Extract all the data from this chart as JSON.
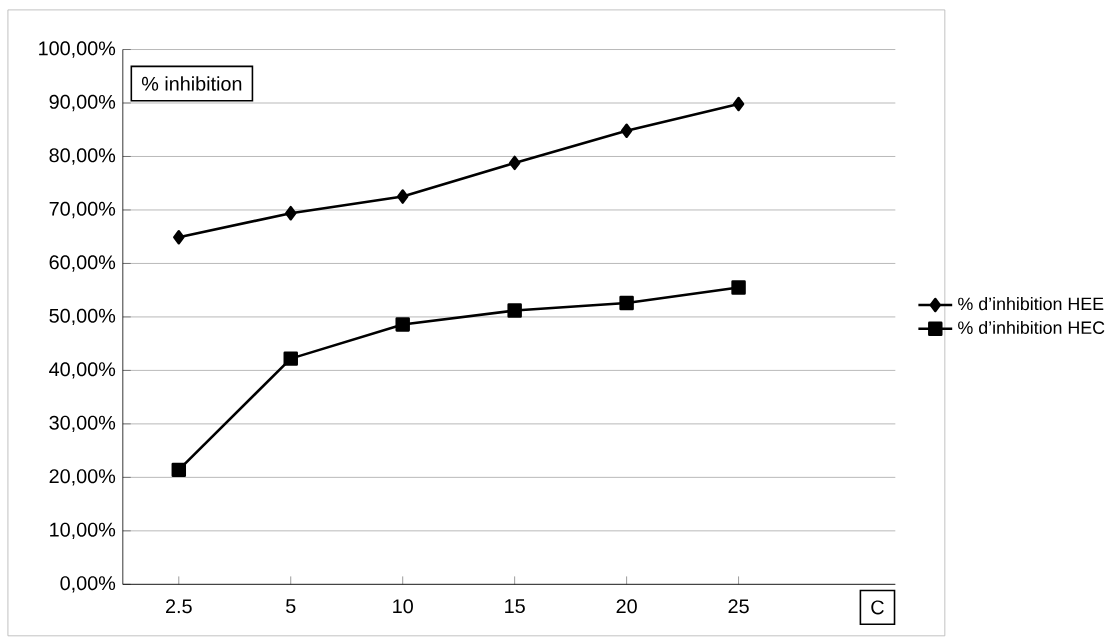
{
  "chart_data": {
    "type": "line",
    "ylabel": "% inhibition",
    "xlabel": "C",
    "categories": [
      "2.5",
      "5",
      "10",
      "15",
      "20",
      "25"
    ],
    "series": [
      {
        "name": "% d’inhibition HEE",
        "color": "#000000",
        "marker": "diamond",
        "values": [
          64.9,
          69.4,
          72.5,
          78.8,
          84.8,
          89.8
        ]
      },
      {
        "name": "% d’inhibition HEC",
        "color": "#000000",
        "marker": "square",
        "values": [
          21.4,
          42.2,
          48.6,
          51.2,
          52.6,
          55.5
        ]
      }
    ],
    "ylim": [
      0,
      100
    ],
    "yticks": [
      {
        "value": 0,
        "label": "0,00%"
      },
      {
        "value": 10,
        "label": "10,00%"
      },
      {
        "value": 20,
        "label": "20,00%"
      },
      {
        "value": 30,
        "label": "30,00%"
      },
      {
        "value": 40,
        "label": "40,00%"
      },
      {
        "value": 50,
        "label": "50,00%"
      },
      {
        "value": 60,
        "label": "60,00%"
      },
      {
        "value": 70,
        "label": "70,00%"
      },
      {
        "value": 80,
        "label": "80,00%"
      },
      {
        "value": 90,
        "label": "90,00%"
      },
      {
        "value": 100,
        "label": "100,00%"
      }
    ],
    "grid": "y",
    "legend": "right",
    "line_style": "solid"
  }
}
